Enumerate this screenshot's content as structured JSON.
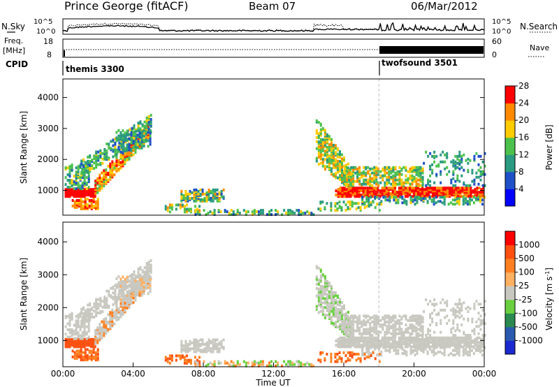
{
  "header": {
    "title": "Prince George (fitACF)",
    "beam": "Beam 07",
    "date": "06/Mar/2012"
  },
  "top_panels": {
    "nsky_label": "N.Sky",
    "nsearch_label": "N.Search",
    "noise_ticks": [
      "10^5",
      "10^0"
    ],
    "freq_label": "Freq.",
    "freq_unit": "[MHz]",
    "freq_ticks": [
      "18",
      "8"
    ],
    "nave_label": "Nave",
    "nave_ticks": [
      "60",
      "0"
    ],
    "cpid_label": "CPID",
    "cpids": [
      {
        "name": "themis 3300",
        "start_hour": 0
      },
      {
        "name": "twofsound 3501",
        "start_hour": 18
      }
    ]
  },
  "chart_data": [
    {
      "type": "heatmap",
      "name": "power",
      "ylabel": "Slant Range [km]",
      "ylim": [
        200,
        4600
      ],
      "yticks": [
        1000,
        2000,
        3000,
        4000
      ],
      "xlim": [
        0,
        24
      ],
      "colorbar_label": "Power [dB]",
      "colorbar_ticks": [
        "4",
        "8",
        "12",
        "16",
        "20",
        "24",
        "28"
      ],
      "colorbar_colors": [
        "#0000ff",
        "#1e50c8",
        "#2a9a80",
        "#4cc24c",
        "#ffcc00",
        "#ff8a00",
        "#ff0000"
      ]
    },
    {
      "type": "heatmap",
      "name": "velocity",
      "ylabel": "Slant Range [km]",
      "ylim": [
        200,
        4600
      ],
      "yticks": [
        1000,
        2000,
        3000,
        4000
      ],
      "xlim": [
        0,
        24
      ],
      "xticks": [
        "00:00",
        "04:00",
        "08:00",
        "12:00",
        "16:00",
        "20:00",
        "00:00"
      ],
      "xlabel": "Time UT",
      "colorbar_label": "Velocity [m s",
      "colorbar_label_sup": "-1",
      "colorbar_label_end": "]",
      "colorbar_ticks": [
        "1000",
        "500",
        "100",
        "25",
        "-25",
        "-100",
        "-500",
        "-1000"
      ],
      "colorbar_colors": [
        "#1a2ad0",
        "#2a5ab0",
        "#2a8a50",
        "#6ad040",
        "#c8c8c0",
        "#ffb060",
        "#ff8020",
        "#ff5010",
        "#ff0000"
      ]
    }
  ]
}
